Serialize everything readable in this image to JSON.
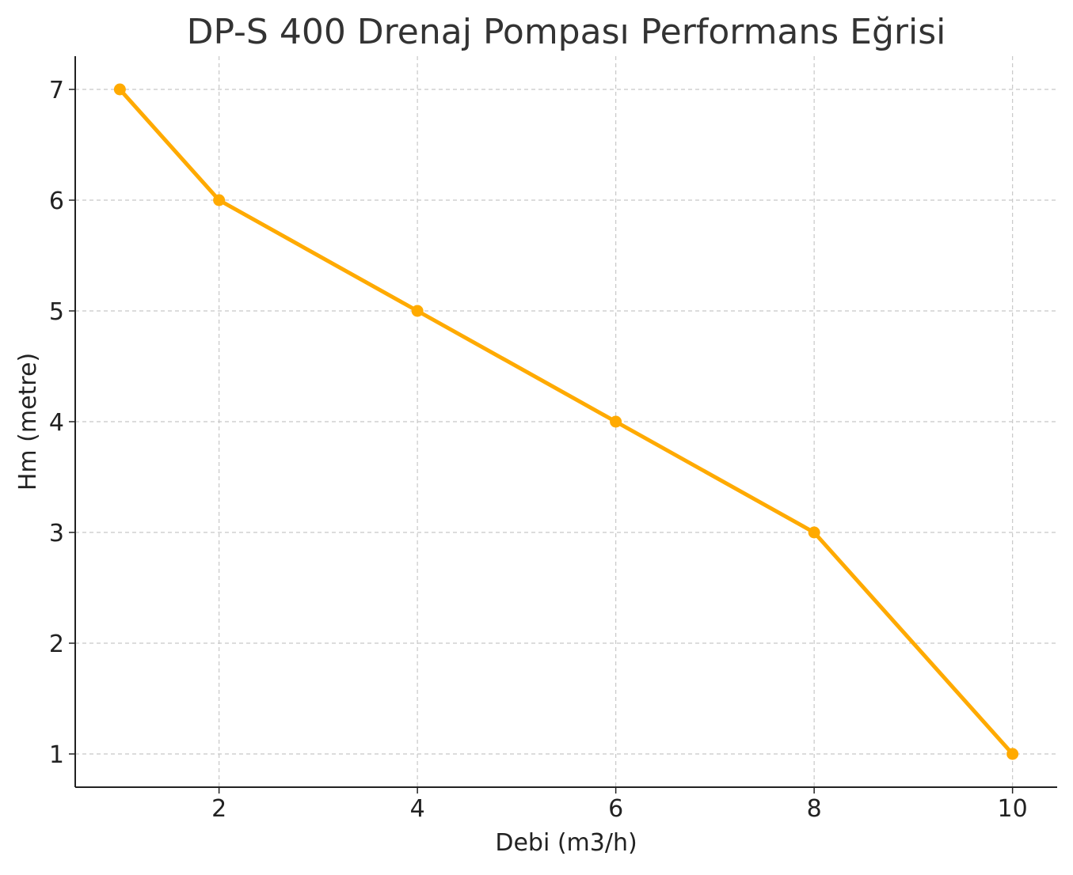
{
  "chart_data": {
    "type": "line",
    "title": "DP-S 400 Drenaj Pompası Performans Eğrisi",
    "xlabel": "Debi (m3/h)",
    "ylabel": "Hm (metre)",
    "xlim": [
      0.55,
      10.45
    ],
    "ylim": [
      0.7,
      7.3
    ],
    "xticks": [
      2,
      4,
      6,
      8,
      10
    ],
    "yticks": [
      1,
      2,
      3,
      4,
      5,
      6,
      7
    ],
    "grid": true,
    "legend": "none",
    "line_color": "#FFAA00",
    "series": [
      {
        "x": [
          1,
          2,
          4,
          6,
          8,
          10
        ],
        "y": [
          7,
          6,
          5,
          4,
          3,
          1
        ]
      }
    ]
  }
}
